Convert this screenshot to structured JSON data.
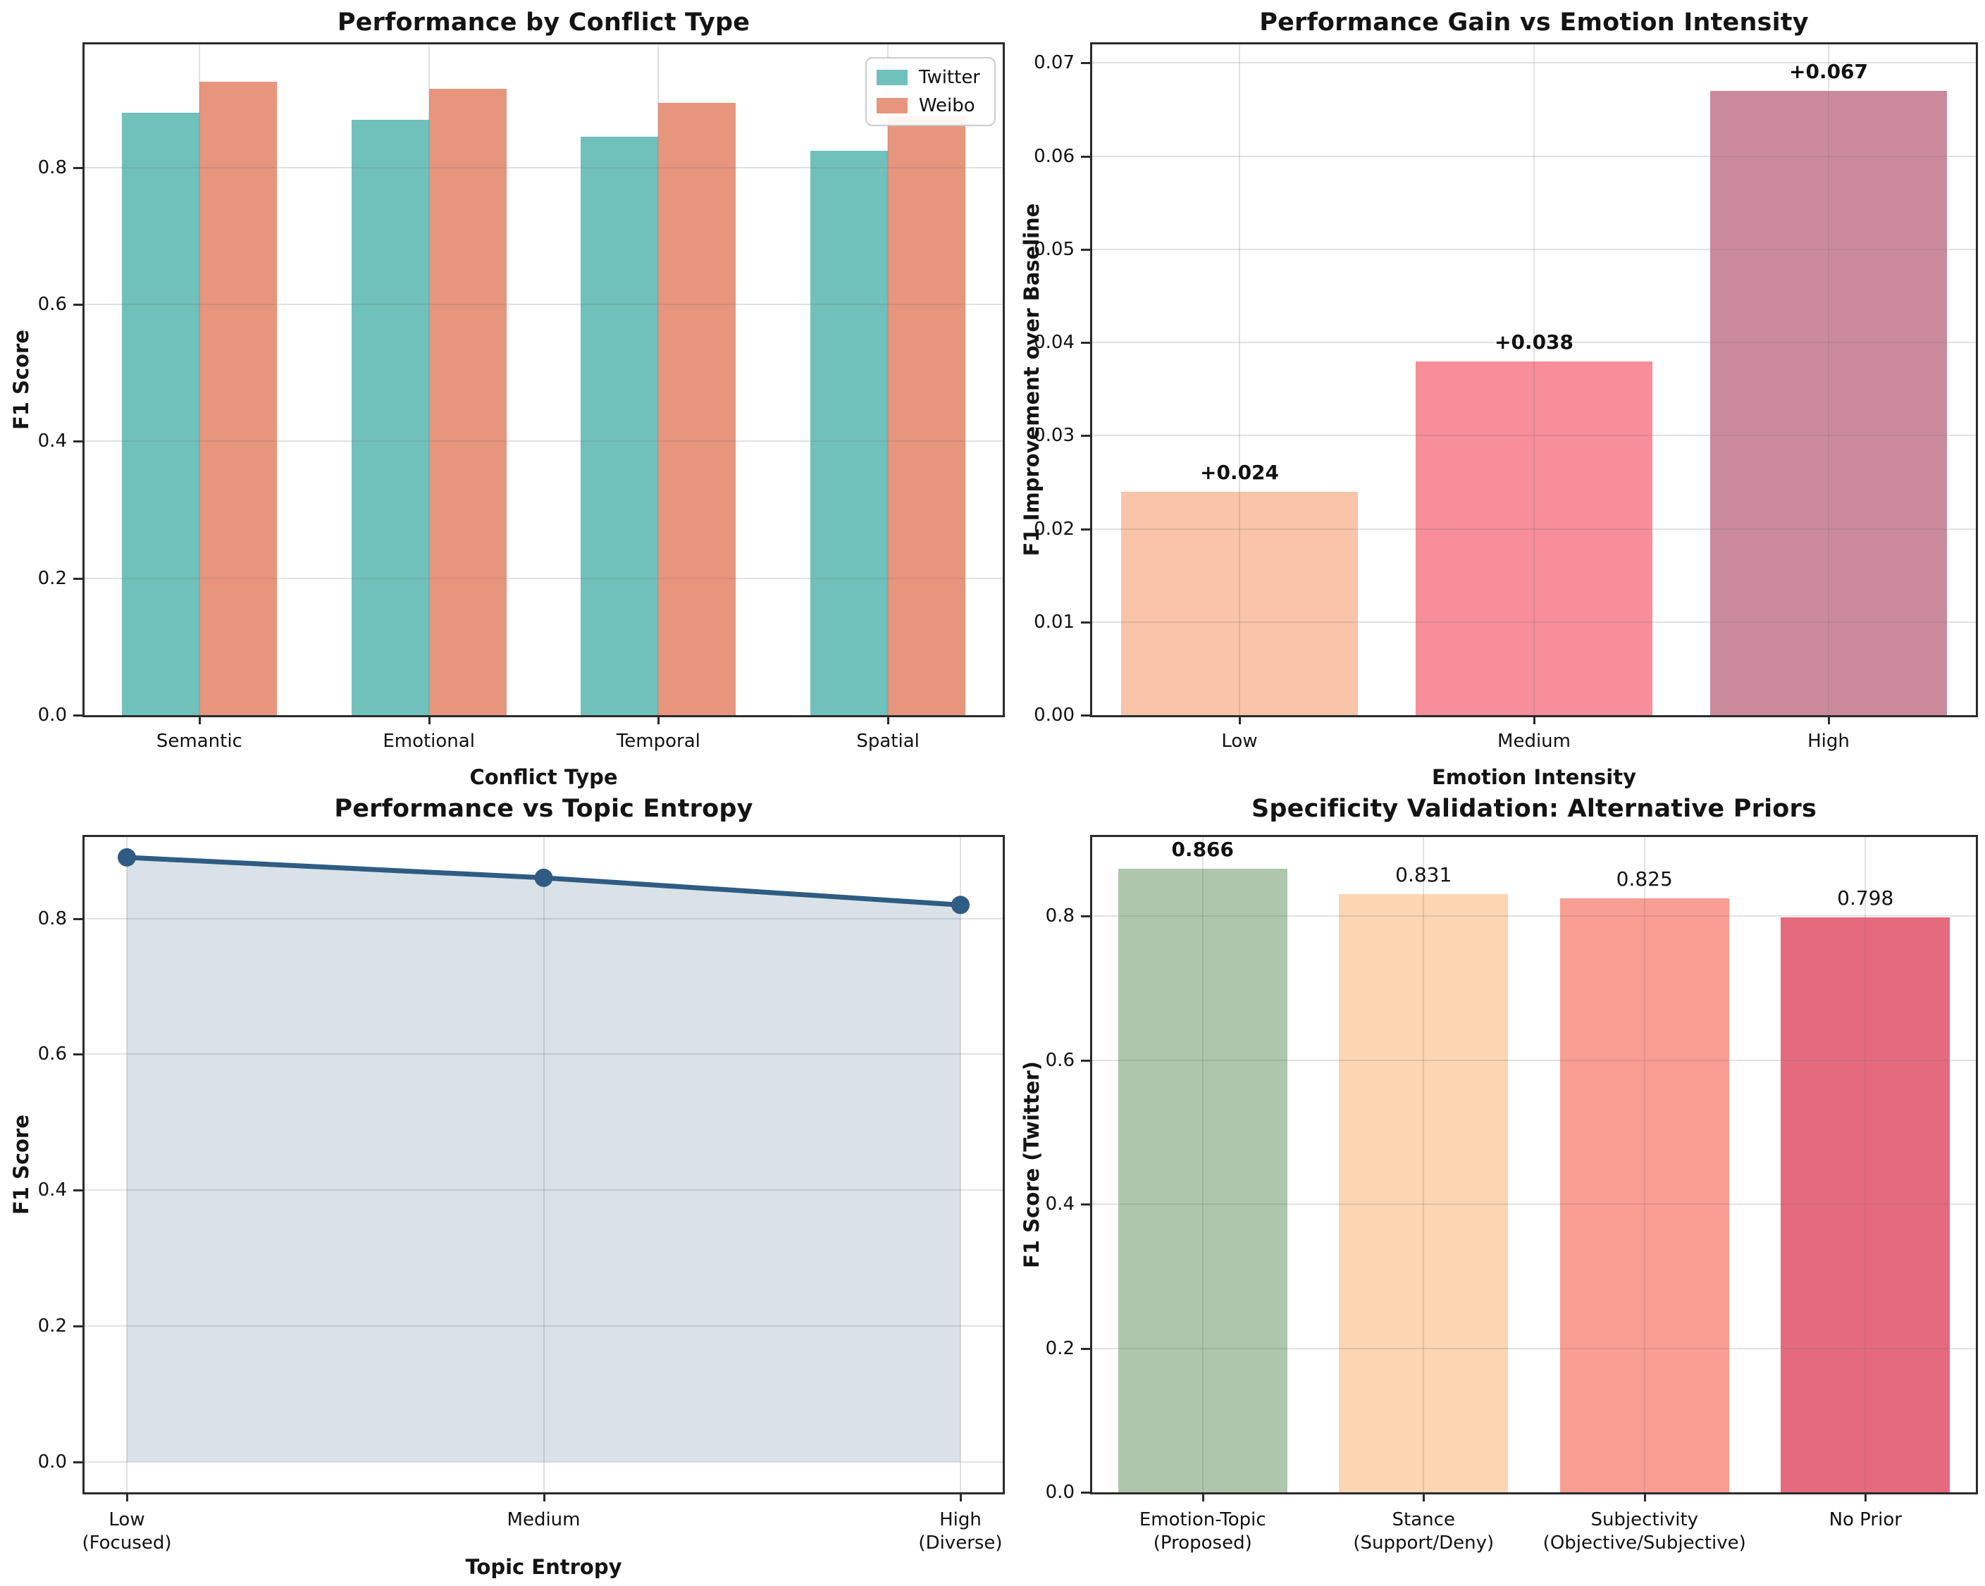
{
  "figure": {
    "background": "#FFFFFF",
    "spine_color": "#2B2B2B",
    "grid_color": "#787878",
    "text_color": "#141414"
  },
  "chart_data": [
    {
      "type": "bar",
      "title": "Performance by Conflict Type",
      "xlabel": "Conflict Type",
      "ylabel": "F1 Score",
      "categories": [
        "Semantic",
        "Emotional",
        "Temporal",
        "Spatial"
      ],
      "series": [
        {
          "name": "Twitter",
          "color": "#70C1BB",
          "values": [
            0.88,
            0.87,
            0.845,
            0.825
          ]
        },
        {
          "name": "Weibo",
          "color": "#E8957E",
          "values": [
            0.925,
            0.915,
            0.895,
            0.875
          ]
        }
      ],
      "legend": {
        "entries": [
          "Twitter",
          "Weibo"
        ],
        "position": "upper right"
      },
      "ylim": [
        0,
        0.98
      ],
      "ytick_values": [
        0,
        0.2,
        0.4,
        0.6,
        0.8
      ],
      "yticks": [
        "0.0",
        "0.2",
        "0.4",
        "0.6",
        "0.8"
      ],
      "grid": true
    },
    {
      "type": "bar",
      "title": "Performance Gain vs Emotion Intensity",
      "xlabel": "Emotion Intensity",
      "ylabel": "F1 Improvement over Baseline",
      "categories": [
        "Low",
        "Medium",
        "High"
      ],
      "values": [
        0.024,
        0.038,
        0.067
      ],
      "bar_labels": [
        "+0.024",
        "+0.038",
        "+0.067"
      ],
      "bar_label_bold": [
        true,
        true,
        true
      ],
      "bar_colors": [
        "#F9C4A8",
        "#F78E9A",
        "#CB8A9B"
      ],
      "ylim": [
        0,
        0.072
      ],
      "ytick_values": [
        0,
        0.01,
        0.02,
        0.03,
        0.04,
        0.05,
        0.06,
        0.07
      ],
      "yticks": [
        "0.00",
        "0.01",
        "0.02",
        "0.03",
        "0.04",
        "0.05",
        "0.06",
        "0.07"
      ],
      "grid": true
    },
    {
      "type": "line",
      "title": "Performance vs Topic Entropy",
      "xlabel": "Topic Entropy",
      "ylabel": "F1 Score",
      "categories": [
        "Low\n(Focused)",
        "Medium",
        "High\n(Diverse)"
      ],
      "values": [
        0.89,
        0.86,
        0.82
      ],
      "line_color": "#2F5C82",
      "fill_alpha": 0.18,
      "marker": "circle",
      "ylim": [
        -0.045,
        0.92
      ],
      "ytick_values": [
        0,
        0.2,
        0.4,
        0.6,
        0.8
      ],
      "yticks": [
        "0.0",
        "0.2",
        "0.4",
        "0.6",
        "0.8"
      ],
      "grid": true
    },
    {
      "type": "bar",
      "title": "Specificity Validation: Alternative Priors",
      "xlabel": "",
      "ylabel": "F1 Score (Twitter)",
      "categories": [
        "Emotion-Topic\n(Proposed)",
        "Stance\n(Support/Deny)",
        "Subjectivity\n(Objective/Subjective)",
        "No Prior"
      ],
      "values": [
        0.866,
        0.831,
        0.825,
        0.798
      ],
      "bar_labels": [
        "0.866",
        "0.831",
        "0.825",
        "0.798"
      ],
      "bar_label_bold": [
        true,
        false,
        false,
        false
      ],
      "bar_colors": [
        "#AEC6AB",
        "#FCD5B3",
        "#FA9D92",
        "#E56A7E"
      ],
      "ylim": [
        0,
        0.91
      ],
      "ytick_values": [
        0,
        0.2,
        0.4,
        0.6,
        0.8
      ],
      "yticks": [
        "0.0",
        "0.2",
        "0.4",
        "0.6",
        "0.8"
      ],
      "grid": true
    }
  ]
}
